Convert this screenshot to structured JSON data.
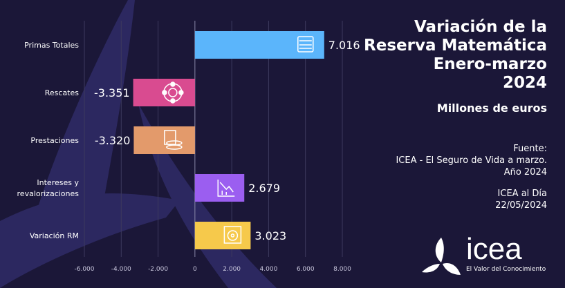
{
  "title_lines": [
    "Variación de la",
    "Reserva Matemática",
    "Enero-marzo",
    "2024"
  ],
  "subtitle": "Millones de euros",
  "source": {
    "label": "Fuente:",
    "line1": "ICEA - El Seguro de Vida a marzo.",
    "line2": "Año 2024",
    "publication": "ICEA al Día",
    "date": "22/05/2024"
  },
  "logo": {
    "word": "icea",
    "tagline": "El Valor del Conocimiento"
  },
  "chart_data": {
    "type": "bar",
    "orientation": "horizontal",
    "categories": [
      "Primas Totales",
      "Rescates",
      "Prestaciones",
      "Intereses y revalorizaciones",
      "Variación RM"
    ],
    "category_lines": [
      [
        "Primas Totales"
      ],
      [
        "Rescates"
      ],
      [
        "Prestaciones"
      ],
      [
        "Intereses y",
        "revalorizaciones"
      ],
      [
        "Variación RM"
      ]
    ],
    "values": [
      7016,
      -3351,
      -3320,
      2679,
      3023
    ],
    "data_labels": [
      "7.016",
      "-3.351",
      "-3.320",
      "2.679",
      "3.023"
    ],
    "colors": [
      "#5bb5fb",
      "#d94b90",
      "#e39a6b",
      "#9b5ef0",
      "#f6c94b"
    ],
    "icons": [
      "money-stack-icon",
      "lifebuoy-icon",
      "calculator-coins-icon",
      "declining-chart-icon",
      "safe-icon"
    ],
    "xlim": [
      -6000,
      8000
    ],
    "xticks": [
      -6000,
      -4000,
      -2000,
      0,
      2000,
      4000,
      6000,
      8000
    ],
    "xtick_labels": [
      "-6.000",
      "-4.000",
      "-2.000",
      "0",
      "2.000",
      "4.000",
      "6.000",
      "8.000"
    ],
    "grid": true
  }
}
